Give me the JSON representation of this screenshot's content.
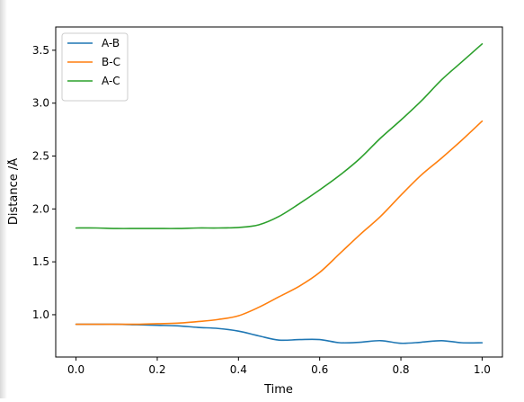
{
  "chart_data": {
    "type": "line",
    "title": "",
    "xlabel": "Time",
    "ylabel": "Distance /Å",
    "xlim": [
      -0.05,
      1.05
    ],
    "ylim": [
      0.6,
      3.72
    ],
    "xticks": [
      "0.0",
      "0.2",
      "0.4",
      "0.6",
      "0.8",
      "1.0"
    ],
    "xtick_values": [
      0.0,
      0.2,
      0.4,
      0.6,
      0.8,
      1.0
    ],
    "yticks": [
      "1.0",
      "1.5",
      "2.0",
      "2.5",
      "3.0",
      "3.5"
    ],
    "ytick_values": [
      1.0,
      1.5,
      2.0,
      2.5,
      3.0,
      3.5
    ],
    "grid": false,
    "legend_position": "top-left",
    "x": [
      0.0,
      0.05,
      0.1,
      0.15,
      0.2,
      0.25,
      0.3,
      0.35,
      0.4,
      0.45,
      0.5,
      0.55,
      0.6,
      0.65,
      0.7,
      0.75,
      0.8,
      0.85,
      0.9,
      0.95,
      1.0
    ],
    "series": [
      {
        "name": "A-B",
        "color": "#1f77b4",
        "values": [
          0.91,
          0.91,
          0.91,
          0.905,
          0.9,
          0.895,
          0.88,
          0.87,
          0.845,
          0.8,
          0.76,
          0.765,
          0.765,
          0.735,
          0.74,
          0.755,
          0.73,
          0.74,
          0.755,
          0.735,
          0.735
        ]
      },
      {
        "name": " B-C",
        "color": "#ff7f0e",
        "values": [
          0.91,
          0.91,
          0.91,
          0.91,
          0.915,
          0.92,
          0.935,
          0.955,
          0.99,
          1.07,
          1.17,
          1.27,
          1.4,
          1.58,
          1.76,
          1.93,
          2.13,
          2.32,
          2.48,
          2.65,
          2.83
        ]
      },
      {
        "name": "A-C",
        "color": "#2ca02c",
        "values": [
          1.82,
          1.82,
          1.815,
          1.815,
          1.815,
          1.815,
          1.82,
          1.82,
          1.825,
          1.85,
          1.93,
          2.05,
          2.18,
          2.32,
          2.48,
          2.67,
          2.84,
          3.02,
          3.22,
          3.39,
          3.56
        ]
      }
    ]
  }
}
